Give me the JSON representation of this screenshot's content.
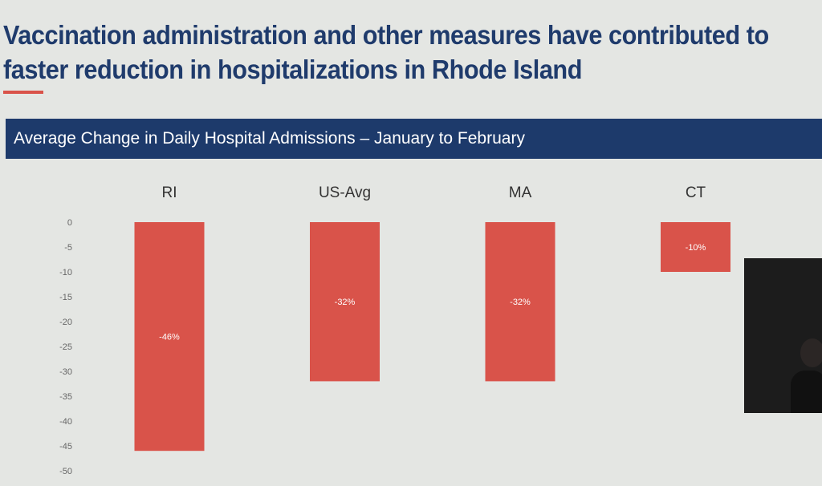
{
  "title_line1": "Vaccination administration and other measures have contributed to",
  "title_line2": "faster reduction in hospitalizations in Rhode Island",
  "banner": "Average Change in Daily Hospital Admissions – January to February",
  "colors": {
    "bar": "#d9534a",
    "banner": "#1d3a6b",
    "title": "#1f3b6c",
    "background": "#e4e6e3"
  },
  "chart_data": {
    "type": "bar",
    "categories": [
      "RI",
      "US-Avg",
      "MA",
      "CT"
    ],
    "values": [
      -46,
      -32,
      -32,
      -10
    ],
    "data_labels": [
      "-46%",
      "-32%",
      "-32%",
      "-10%"
    ],
    "yticks": [
      "0",
      "-5",
      "-10",
      "-15",
      "-20",
      "-25",
      "-30",
      "-35",
      "-40",
      "-45",
      "-50"
    ],
    "ylim": [
      -50,
      0
    ],
    "grid": false,
    "category_labels_position": "top"
  }
}
